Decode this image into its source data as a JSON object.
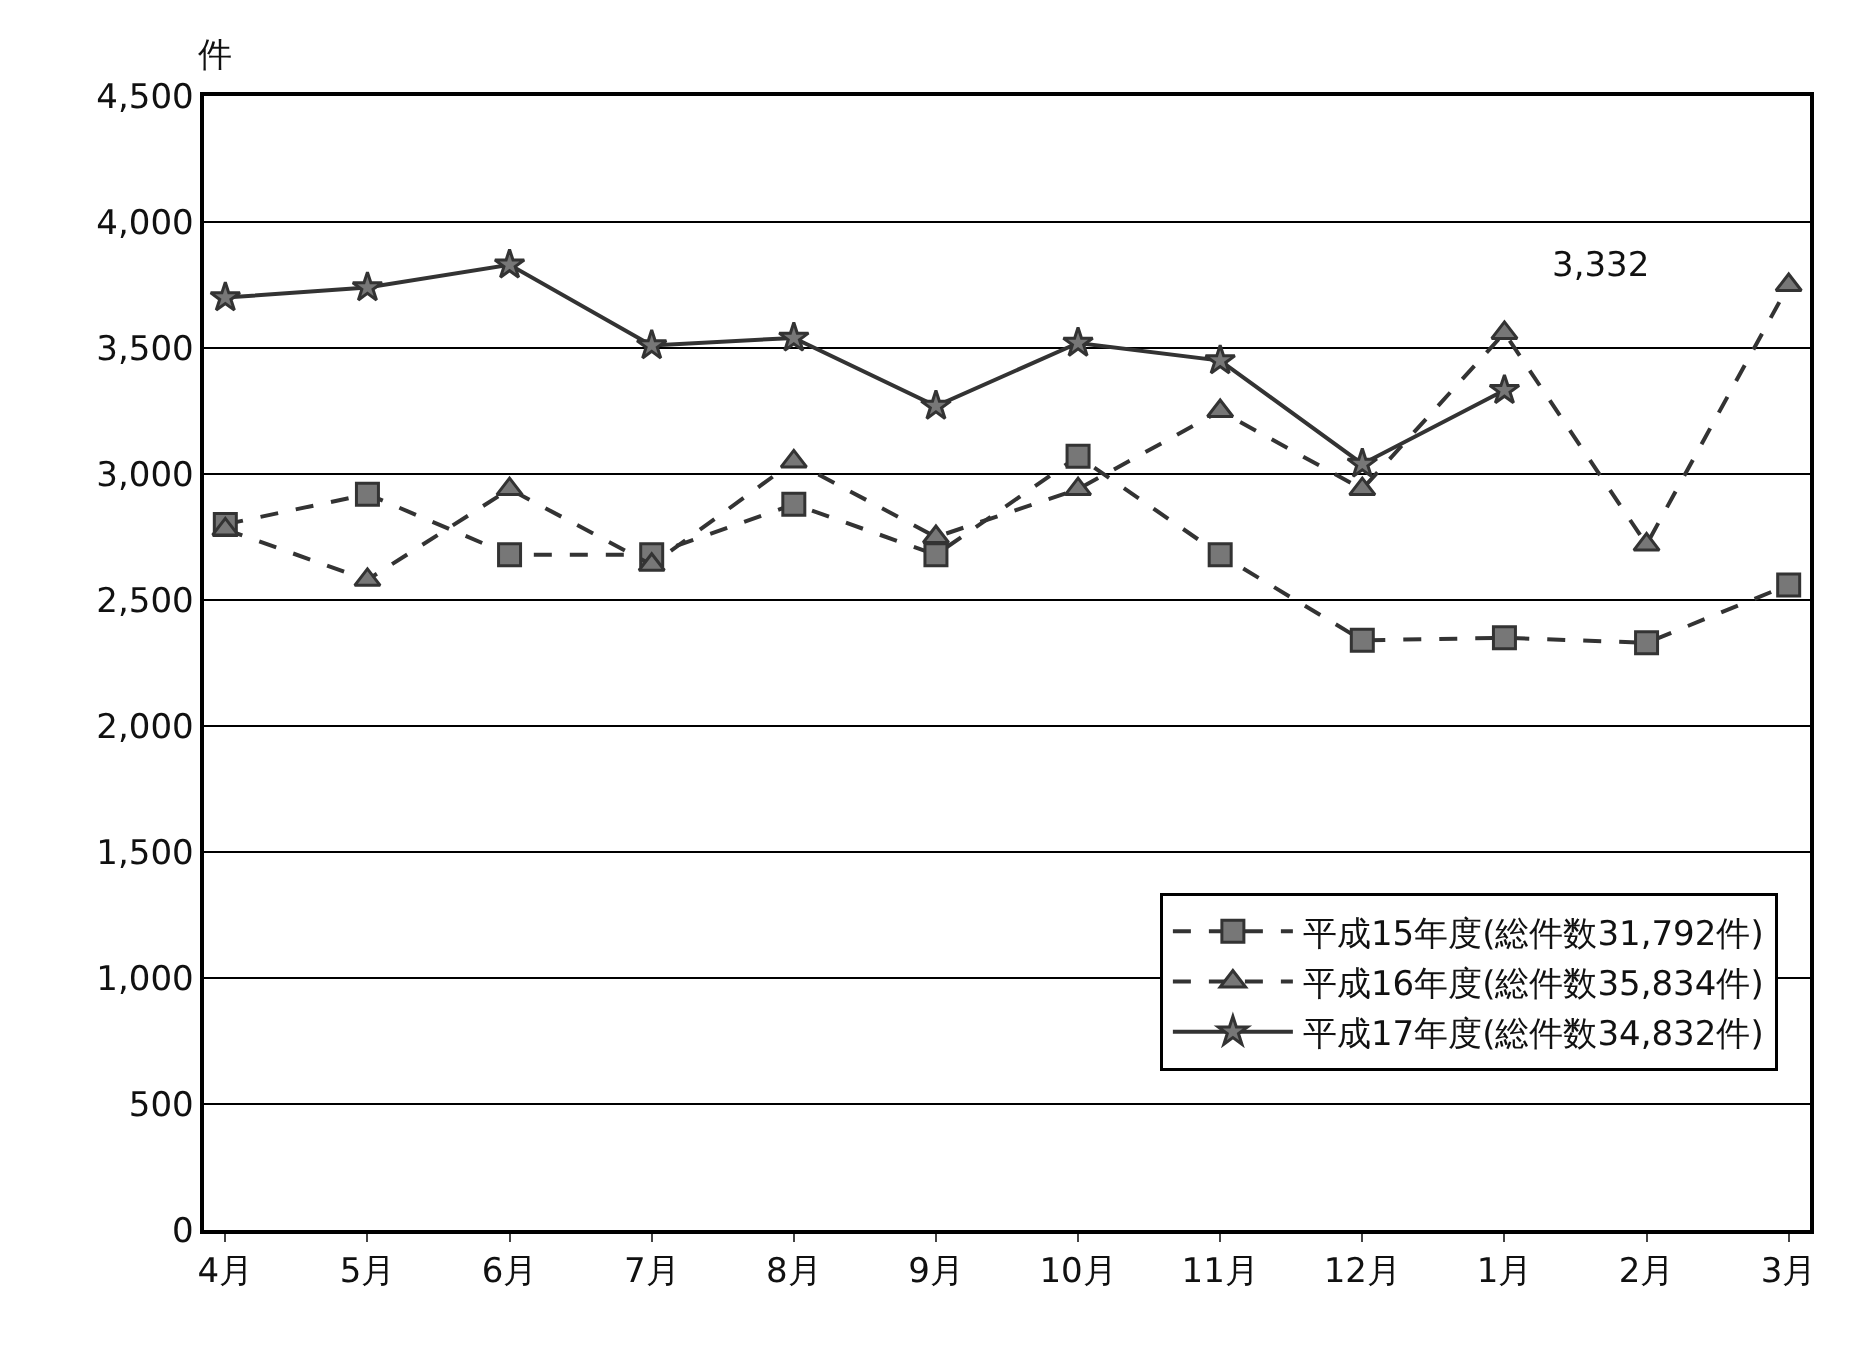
{
  "chart_data": {
    "type": "line",
    "ylabel": "件",
    "categories": [
      "4月",
      "5月",
      "6月",
      "7月",
      "8月",
      "9月",
      "10月",
      "11月",
      "12月",
      "1月",
      "2月",
      "3月"
    ],
    "series": [
      {
        "name": "平成15年度(総件数31,792件)",
        "color": "#333333",
        "marker": "square",
        "line_style": "dashed",
        "values": [
          2800,
          2920,
          2680,
          2680,
          2880,
          2680,
          3070,
          2680,
          2340,
          2350,
          2330,
          2560
        ]
      },
      {
        "name": "平成16年度(総件数35,834件)",
        "color": "#333333",
        "marker": "triangle",
        "line_style": "dashed",
        "values": [
          2780,
          2580,
          2940,
          2640,
          3050,
          2750,
          2940,
          3250,
          2940,
          3560,
          2720,
          3750
        ]
      },
      {
        "name": "平成17年度(総件数34,832件)",
        "color": "#333333",
        "marker": "star",
        "line_style": "solid",
        "values": [
          3700,
          3740,
          3830,
          3510,
          3540,
          3270,
          3520,
          3450,
          3040,
          3332,
          null,
          null
        ]
      }
    ],
    "annotations": [
      "3,332"
    ],
    "ylim": [
      0,
      4500
    ],
    "yticks": [
      {
        "value": 0,
        "label": "0"
      },
      {
        "value": 500,
        "label": "500"
      },
      {
        "value": 1000,
        "label": "1,000"
      },
      {
        "value": 1500,
        "label": "1,500"
      },
      {
        "value": 2000,
        "label": "2,000"
      },
      {
        "value": 2500,
        "label": "2,500"
      },
      {
        "value": 3000,
        "label": "3,000"
      },
      {
        "value": 3500,
        "label": "3,500"
      },
      {
        "value": 4000,
        "label": "4,000"
      },
      {
        "value": 4500,
        "label": "4,500"
      }
    ],
    "grid": "y",
    "legend": "bottom right"
  }
}
